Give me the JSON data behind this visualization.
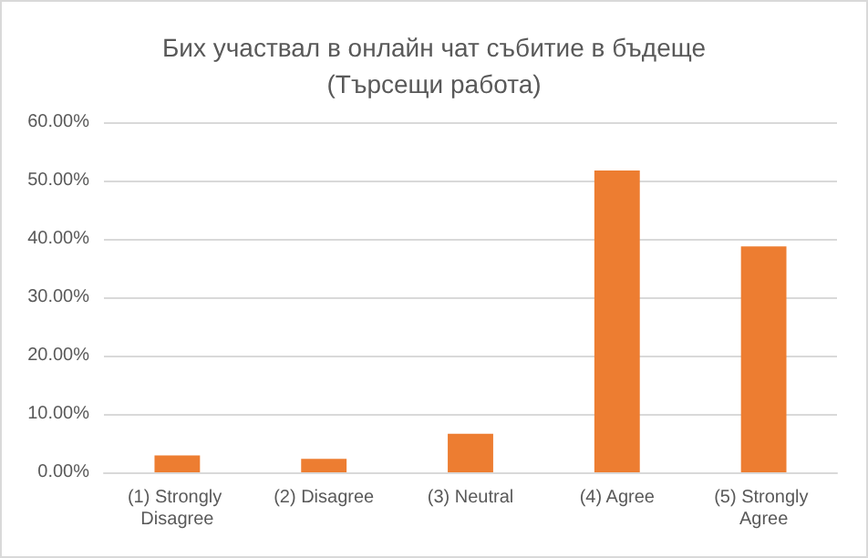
{
  "chart_data": {
    "type": "bar",
    "title": "Бих участвал в онлайн чат събитие в бъдеще",
    "subtitle": "(Търсещи работа)",
    "categories": [
      "(1) Strongly Disagree",
      "(2) Disagree",
      "(3) Neutral",
      "(4) Agree",
      "(5) Strongly Agree"
    ],
    "values": [
      2.9,
      2.3,
      6.6,
      51.7,
      38.7
    ],
    "color": "#ed7d31",
    "ylim": [
      0,
      60
    ],
    "yticks": [
      {
        "value": 0,
        "label": "0.00%"
      },
      {
        "value": 10,
        "label": "10.00%"
      },
      {
        "value": 20,
        "label": "20.00%"
      },
      {
        "value": 30,
        "label": "30.00%"
      },
      {
        "value": 40,
        "label": "40.00%"
      },
      {
        "value": 50,
        "label": "50.00%"
      },
      {
        "value": 60,
        "label": "60.00%"
      }
    ],
    "grid": true
  }
}
